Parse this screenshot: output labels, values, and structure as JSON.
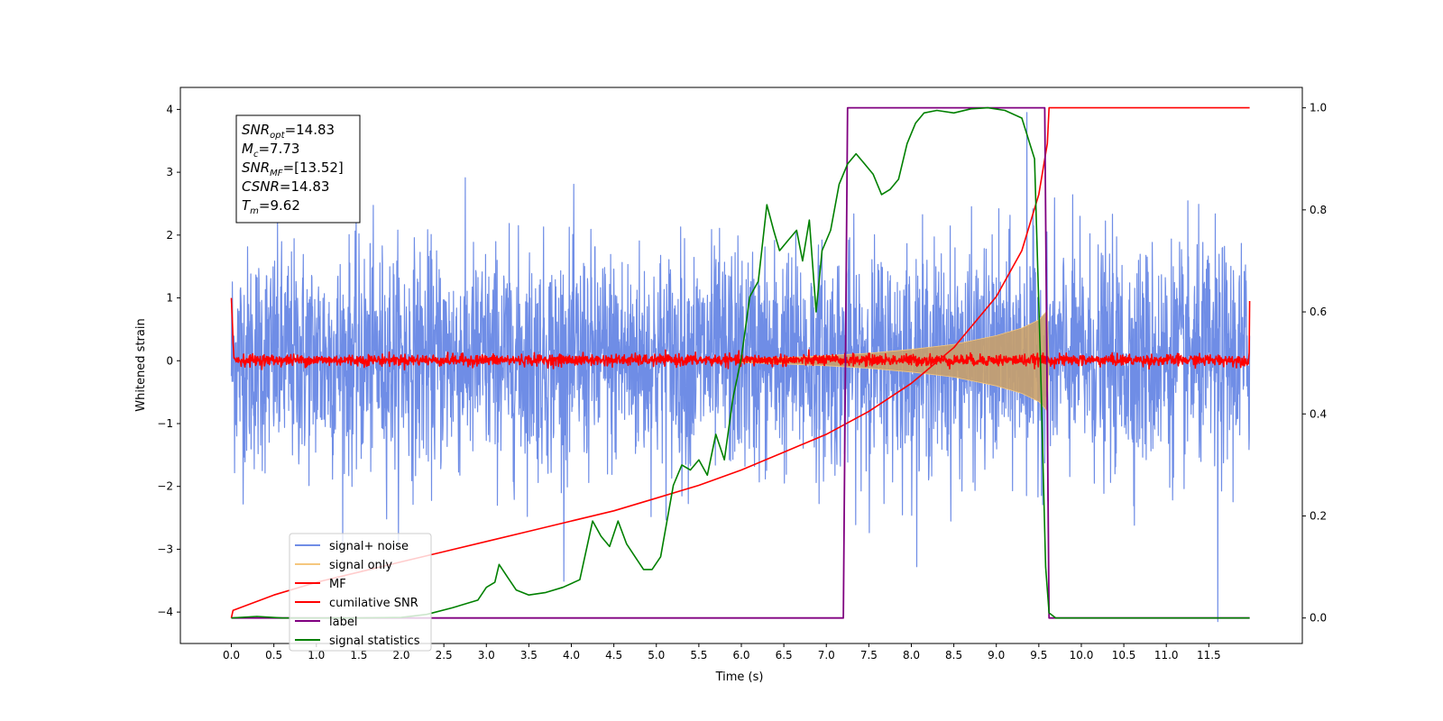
{
  "chart_data": {
    "type": "line",
    "xlabel": "Time (s)",
    "ylabel": "Whitened strain",
    "xlim": [
      -0.6,
      12.6
    ],
    "ylim": [
      -4.5,
      4.35
    ],
    "y2lim": [
      -0.05,
      1.04
    ],
    "x_ticks": [
      0.0,
      0.5,
      1.0,
      1.5,
      2.0,
      2.5,
      3.0,
      3.5,
      4.0,
      4.5,
      5.0,
      5.5,
      6.0,
      6.5,
      7.0,
      7.5,
      8.0,
      8.5,
      9.0,
      9.5,
      10.0,
      10.5,
      11.0,
      11.5
    ],
    "x_tick_labels": [
      "0.0",
      "0.5",
      "1.0",
      "1.5",
      "2.0",
      "2.5",
      "3.0",
      "3.5",
      "4.0",
      "4.5",
      "5.0",
      "5.5",
      "6.0",
      "6.5",
      "7.0",
      "7.5",
      "8.0",
      "8.5",
      "9.0",
      "9.5",
      "10.0",
      "10.5",
      "11.0",
      "11.5"
    ],
    "y_ticks": [
      -4,
      -3,
      -2,
      -1,
      0,
      1,
      2,
      3,
      4
    ],
    "y_tick_labels": [
      "−4",
      "−3",
      "−2",
      "−1",
      "0",
      "1",
      "2",
      "3",
      "4"
    ],
    "y2_ticks": [
      0.0,
      0.2,
      0.4,
      0.6,
      0.8,
      1.0
    ],
    "y2_tick_labels": [
      "0.0",
      "0.2",
      "0.4",
      "0.6",
      "0.8",
      "1.0"
    ],
    "legend": {
      "placement": "lower-left",
      "entries": [
        {
          "label": "signal+ noise",
          "color": "#6f8de6"
        },
        {
          "label": "signal only",
          "color": "#f5c77e"
        },
        {
          "label": "MF",
          "color": "#ff0000"
        },
        {
          "label": "cumilative SNR",
          "color": "#ff0000"
        },
        {
          "label": "label",
          "color": "#800080"
        },
        {
          "label": "signal statistics",
          "color": "#008000"
        }
      ]
    },
    "annotation": {
      "placement": "top-left",
      "lines": [
        {
          "base": "SNR",
          "sub": "opt",
          "rest": "=14.83"
        },
        {
          "base": "M",
          "sub": "c",
          "rest": "=7.73"
        },
        {
          "base": "SNR",
          "sub": "MF",
          "rest": "=[13.52]"
        },
        {
          "base": "CSNR",
          "sub": "",
          "rest": "=14.83"
        },
        {
          "base": "T",
          "sub": "m",
          "rest": "=9.62"
        }
      ]
    },
    "series": [
      {
        "name": "signal+ noise",
        "axis": "left",
        "color": "#6f8de6",
        "kind": "noise_band",
        "t_start": 0.0,
        "t_end": 11.98,
        "typical_range": [
          -1.5,
          1.7
        ],
        "max": 3.95,
        "min": -4.15
      },
      {
        "name": "signal only",
        "axis": "left",
        "color": "#f5c77e",
        "kind": "chirp_envelope",
        "x": [
          6.0,
          6.5,
          7.0,
          7.5,
          8.0,
          8.5,
          9.0,
          9.3,
          9.5,
          9.6,
          9.62
        ],
        "envelope": [
          0.03,
          0.05,
          0.08,
          0.12,
          0.18,
          0.26,
          0.4,
          0.52,
          0.65,
          0.8,
          0.0
        ]
      },
      {
        "name": "MF",
        "axis": "left",
        "color": "#ff0000",
        "kind": "noise_band",
        "t_start": 0.0,
        "t_end": 11.98,
        "typical_range": [
          -0.08,
          0.1
        ],
        "start_value": 1.0,
        "end_value": 0.95
      },
      {
        "name": "cumilative SNR",
        "axis": "right",
        "color": "#ff0000",
        "x": [
          0.0,
          0.02,
          0.5,
          1.0,
          1.5,
          2.0,
          2.5,
          3.0,
          3.5,
          4.0,
          4.5,
          5.0,
          5.5,
          6.0,
          6.5,
          7.0,
          7.5,
          8.0,
          8.5,
          9.0,
          9.3,
          9.5,
          9.6,
          9.62,
          11.98
        ],
        "y": [
          0.0,
          0.015,
          0.045,
          0.07,
          0.09,
          0.11,
          0.13,
          0.15,
          0.17,
          0.19,
          0.21,
          0.235,
          0.26,
          0.29,
          0.325,
          0.36,
          0.405,
          0.46,
          0.53,
          0.63,
          0.72,
          0.83,
          0.93,
          1.0,
          1.0
        ]
      },
      {
        "name": "label",
        "axis": "right",
        "color": "#800080",
        "x": [
          0.0,
          7.2,
          7.25,
          9.57,
          9.62,
          11.98
        ],
        "y": [
          0.0,
          0.0,
          1.0,
          1.0,
          0.0,
          0.0
        ]
      },
      {
        "name": "signal statistics",
        "axis": "right",
        "color": "#008000",
        "x": [
          0.0,
          0.3,
          0.6,
          1.0,
          1.5,
          2.0,
          2.3,
          2.6,
          2.9,
          3.0,
          3.1,
          3.15,
          3.25,
          3.35,
          3.5,
          3.7,
          3.9,
          4.1,
          4.25,
          4.35,
          4.45,
          4.55,
          4.65,
          4.75,
          4.85,
          4.95,
          5.05,
          5.2,
          5.3,
          5.4,
          5.5,
          5.6,
          5.7,
          5.8,
          5.9,
          6.0,
          6.1,
          6.2,
          6.3,
          6.38,
          6.45,
          6.55,
          6.65,
          6.72,
          6.8,
          6.88,
          6.95,
          7.05,
          7.15,
          7.25,
          7.35,
          7.45,
          7.55,
          7.65,
          7.75,
          7.85,
          7.95,
          8.05,
          8.15,
          8.3,
          8.5,
          8.7,
          8.9,
          9.1,
          9.3,
          9.45,
          9.52,
          9.58,
          9.62,
          9.7,
          11.98
        ],
        "y": [
          0.0,
          0.003,
          0.0,
          0.0,
          0.0,
          0.001,
          0.007,
          0.02,
          0.035,
          0.06,
          0.07,
          0.105,
          0.08,
          0.055,
          0.045,
          0.05,
          0.06,
          0.075,
          0.19,
          0.16,
          0.14,
          0.19,
          0.145,
          0.12,
          0.095,
          0.095,
          0.12,
          0.26,
          0.3,
          0.29,
          0.31,
          0.28,
          0.36,
          0.31,
          0.43,
          0.51,
          0.63,
          0.66,
          0.81,
          0.76,
          0.72,
          0.74,
          0.76,
          0.7,
          0.78,
          0.6,
          0.72,
          0.76,
          0.85,
          0.89,
          0.91,
          0.89,
          0.87,
          0.83,
          0.84,
          0.86,
          0.93,
          0.97,
          0.99,
          0.995,
          0.99,
          0.998,
          1.0,
          0.995,
          0.98,
          0.9,
          0.5,
          0.1,
          0.01,
          0.0,
          0.0
        ]
      }
    ]
  }
}
